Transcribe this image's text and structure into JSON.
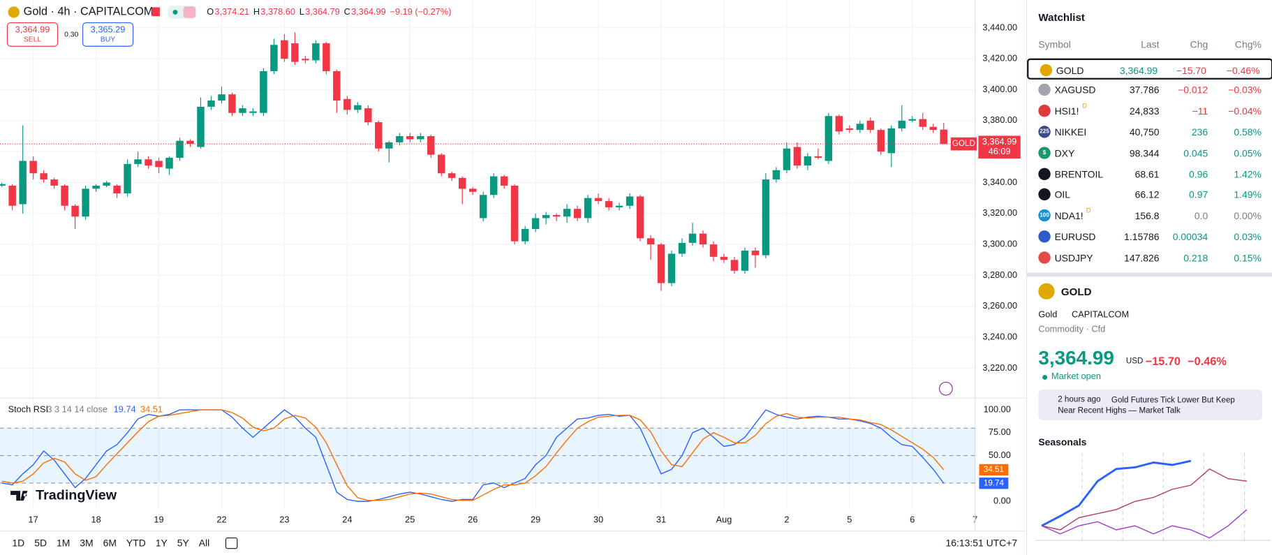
{
  "chart_data": [
    {
      "type": "candlestick",
      "title": "Gold · 4h · CAPITALCOM",
      "categories": [
        null,
        null,
        null,
        "17",
        null,
        null,
        null,
        null,
        null,
        "18",
        null,
        null,
        null,
        null,
        null,
        "19",
        null,
        null,
        null,
        null,
        null,
        "22",
        null,
        null,
        null,
        null,
        null,
        "23",
        null,
        null,
        null,
        null,
        null,
        "24",
        null,
        null,
        null,
        null,
        null,
        "25",
        null,
        null,
        null,
        null,
        null,
        "26",
        null,
        null,
        null,
        null,
        null,
        "29",
        null,
        null,
        null,
        null,
        null,
        "30",
        null,
        null,
        null,
        null,
        null,
        "31",
        null,
        null,
        null,
        null,
        null,
        "Aug",
        null,
        null,
        null,
        null,
        null,
        "2",
        null,
        null,
        null,
        null,
        null,
        "5",
        null,
        null,
        null,
        null,
        null,
        "6",
        null,
        null,
        null,
        null,
        null,
        "7"
      ],
      "open": [
        3338,
        3338,
        3326,
        3354,
        3346,
        3342,
        3338,
        3325,
        3318,
        3336,
        3338,
        3338,
        3333,
        3352,
        3355,
        3354,
        3349,
        3356,
        3367,
        3363,
        3389,
        3393,
        3397,
        3385,
        3385,
        3385,
        3412,
        3432,
        3430,
        3420,
        3419,
        3430,
        3412,
        3394,
        3387,
        3388,
        3379,
        3362,
        3366,
        3370,
        3368,
        3370,
        3358,
        3346,
        3343,
        3336,
        3317,
        3332,
        3344,
        3338,
        3302,
        3310,
        3317,
        3319,
        3318,
        3323,
        3317,
        3330,
        3328,
        3324,
        3325,
        3331,
        3304,
        3300,
        3275,
        3294,
        3301,
        3307,
        3300,
        3292,
        3290,
        3283,
        3296,
        3293,
        3342,
        3348,
        3363,
        3351,
        3357,
        3354,
        3383,
        3375,
        3374,
        3380,
        3374,
        3359,
        3375,
        3380,
        3381,
        3376,
        3374.21,
        null,
        null,
        null
      ],
      "high": [
        3340,
        3339,
        3377,
        3357,
        3348,
        3343,
        3339,
        3326,
        3338,
        3339,
        3341,
        3339,
        3355,
        3360,
        3357,
        3356,
        3357,
        3369,
        3368,
        3395,
        3396,
        3402,
        3398,
        3390,
        3388,
        3414,
        3433,
        3436,
        3437,
        3422,
        3432,
        3431,
        3413,
        3396,
        3392,
        3390,
        3380,
        3367,
        3372,
        3372,
        3372,
        3371,
        3359,
        3347,
        3344,
        3337,
        3334,
        3346,
        3345,
        3339,
        3312,
        3320,
        3321,
        3320,
        3326,
        3325,
        3332,
        3333,
        3330,
        3327,
        3333,
        3332,
        3306,
        3301,
        3296,
        3304,
        3314,
        3309,
        3302,
        3294,
        3292,
        3298,
        3298,
        3346,
        3350,
        3366,
        3366,
        3359,
        3362,
        3385,
        3384,
        3377,
        3380,
        3382,
        3375,
        3377,
        3390,
        3383,
        3385,
        3378,
        3378.6,
        null,
        null,
        null
      ],
      "low": [
        3337,
        3322,
        3320,
        3342,
        3340,
        3336,
        3322,
        3310,
        3316,
        3334,
        3337,
        3330,
        3331,
        3350,
        3349,
        3346,
        3345,
        3354,
        3363,
        3362,
        3387,
        3391,
        3383,
        3383,
        3383,
        3383,
        3410,
        3418,
        3416,
        3417,
        3417,
        3410,
        3385,
        3384,
        3385,
        3377,
        3360,
        3353,
        3364,
        3366,
        3366,
        3356,
        3344,
        3341,
        3326,
        3332,
        3315,
        3330,
        3336,
        3300,
        3300,
        3308,
        3313,
        3315,
        3314,
        3315,
        3314,
        3326,
        3322,
        3322,
        3323,
        3302,
        3290,
        3270,
        3273,
        3292,
        3299,
        3298,
        3289,
        3288,
        3281,
        3281,
        3285,
        3291,
        3340,
        3346,
        3349,
        3348,
        3355,
        3352,
        3371,
        3372,
        3372,
        3372,
        3358,
        3350,
        3373,
        3379,
        3374,
        3372,
        3364.79,
        null,
        null,
        null
      ],
      "close": [
        3339,
        3325,
        3354,
        3346,
        3342,
        3338,
        3325,
        3318,
        3336,
        3338,
        3340,
        3333,
        3352,
        3355,
        3351,
        3350,
        3356,
        3367,
        3365,
        3389,
        3393,
        3397,
        3385,
        3388,
        3386,
        3412,
        3429,
        3420,
        3418,
        3419,
        3430,
        3412,
        3393,
        3387,
        3390,
        3379,
        3362,
        3366,
        3370,
        3368,
        3370,
        3358,
        3346,
        3343,
        3336,
        3334,
        3332,
        3344,
        3338,
        3302,
        3310,
        3317,
        3319,
        3318,
        3323,
        3317,
        3330,
        3328,
        3324,
        3325,
        3331,
        3304,
        3300,
        3275,
        3294,
        3301,
        3307,
        3300,
        3292,
        3290,
        3283,
        3296,
        3293,
        3342,
        3348,
        3362,
        3351,
        3357,
        3356,
        3383,
        3373,
        3374,
        3378,
        3374,
        3360,
        3375,
        3380,
        3381,
        3376,
        3374,
        3364.99,
        null,
        null,
        null
      ],
      "up_color": "#089981",
      "down_color": "#f23645",
      "ylim": [
        3201,
        3458
      ],
      "yticks": [
        {
          "value": 3220,
          "label": "3,220.00"
        },
        {
          "value": 3240,
          "label": "3,240.00"
        },
        {
          "value": 3260,
          "label": "3,260.00"
        },
        {
          "value": 3280,
          "label": "3,280.00"
        },
        {
          "value": 3300,
          "label": "3,300.00"
        },
        {
          "value": 3320,
          "label": "3,320.00"
        },
        {
          "value": 3340,
          "label": "3,340.00"
        },
        {
          "value": 3360,
          "label": "3,360.00"
        },
        {
          "value": 3380,
          "label": "3,380.00"
        },
        {
          "value": 3400,
          "label": "3,400.00"
        },
        {
          "value": 3420,
          "label": "3,420.00"
        },
        {
          "value": 3440,
          "label": "3,440.00"
        }
      ],
      "grid": true,
      "symbol_tag": "GOLD",
      "last_price_label": "3,364.99",
      "countdown": "46:09"
    },
    {
      "type": "line",
      "title": "Stoch RSI",
      "params": "3 3 14 14 close",
      "series": [
        {
          "color": "#2962ff",
          "values": [
            20,
            18,
            30,
            40,
            55,
            45,
            30,
            15,
            25,
            40,
            55,
            62,
            75,
            90,
            95,
            93,
            95,
            100,
            100,
            100,
            100,
            100,
            92,
            80,
            70,
            80,
            90,
            100,
            92,
            80,
            70,
            40,
            10,
            2,
            0,
            0,
            2,
            5,
            8,
            10,
            8,
            5,
            2,
            0,
            2,
            2,
            18,
            20,
            15,
            20,
            25,
            40,
            50,
            70,
            80,
            90,
            91,
            94,
            95,
            93,
            94,
            80,
            55,
            30,
            35,
            50,
            75,
            80,
            70,
            60,
            62,
            70,
            85,
            100,
            95,
            92,
            90,
            92,
            93,
            92,
            90,
            90,
            88,
            85,
            80,
            70,
            62,
            60,
            48,
            35,
            19.74,
            null,
            null,
            null
          ]
        },
        {
          "color": "#ff6d00",
          "values": [
            22,
            20,
            22,
            30,
            42,
            47,
            43,
            30,
            23,
            27,
            40,
            52,
            64,
            76,
            87,
            93,
            94,
            96,
            98,
            100,
            100,
            100,
            97,
            91,
            81,
            77,
            80,
            90,
            94,
            91,
            81,
            64,
            40,
            17,
            4,
            1,
            1,
            2,
            5,
            8,
            9,
            8,
            5,
            2,
            1,
            1,
            7,
            13,
            18,
            18,
            20,
            28,
            38,
            53,
            67,
            80,
            87,
            92,
            93,
            94,
            94,
            89,
            76,
            55,
            40,
            38,
            53,
            68,
            75,
            70,
            64,
            64,
            72,
            85,
            93,
            96,
            92,
            91,
            92,
            92,
            92,
            90,
            89,
            86,
            84,
            78,
            71,
            64,
            57,
            48,
            34.51,
            null,
            null,
            null
          ]
        }
      ],
      "ylim": [
        -9,
        112.5
      ],
      "yticks": [
        {
          "value": 0,
          "label": "0.00"
        },
        {
          "value": 50,
          "label": "50.00"
        },
        {
          "value": 75,
          "label": "75.00"
        },
        {
          "value": 100,
          "label": "100.00"
        }
      ],
      "bands": [
        20,
        80
      ],
      "midline": 50,
      "band_color": "rgba(33,150,243,0.1)"
    },
    {
      "type": "line",
      "title": "Seasonals",
      "series": [
        {
          "color": "#2962ff",
          "values": [
            0,
            12,
            25,
            55,
            70,
            72,
            78,
            75,
            80,
            null,
            null,
            null
          ]
        },
        {
          "color": "#b03a6a",
          "values": [
            0,
            -5,
            10,
            15,
            20,
            30,
            35,
            45,
            50,
            70,
            58,
            55
          ]
        },
        {
          "color": "#a23bcf",
          "values": [
            0,
            -10,
            0,
            5,
            -5,
            0,
            -10,
            0,
            -5,
            -15,
            0,
            20
          ]
        }
      ],
      "ylim": [
        -20,
        90
      ]
    }
  ],
  "header": {
    "ohlc": [
      {
        "label": "O",
        "value": "3,374.21"
      },
      {
        "label": "H",
        "value": "3,378.60"
      },
      {
        "label": "L",
        "value": "3,364.79"
      },
      {
        "label": "C",
        "value": "3,364.99"
      }
    ],
    "change": "−9.19 (−0.27%)",
    "sell": {
      "price": "3,364.99",
      "label": "SELL"
    },
    "spread": "0.30",
    "buy": {
      "price": "3,365.29",
      "label": "BUY"
    }
  },
  "logo": "TradingView",
  "toolbar": {
    "ranges": [
      "1D",
      "5D",
      "1M",
      "3M",
      "6M",
      "YTD",
      "1Y",
      "5Y",
      "All"
    ],
    "clock": "16:13:51 UTC+7"
  },
  "watchlist": {
    "title": "Watchlist",
    "columns": [
      "Symbol",
      "Last",
      "Chg",
      "Chg%"
    ],
    "rows": [
      {
        "symbol": "GOLD",
        "last": "3,364.99",
        "chg": "−15.70",
        "chg_pct": "−0.46%",
        "icon_color": "#e0a800"
      },
      {
        "symbol": "XAGUSD",
        "last": "37.786",
        "chg": "−0.012",
        "chg_pct": "−0.03%",
        "icon_color": "#a0a4ad"
      },
      {
        "symbol": "HSI1!",
        "badge": "D",
        "last": "24,833",
        "chg": "−11",
        "chg_pct": "−0.04%",
        "icon_color": "#e03a3a"
      },
      {
        "symbol": "NIKKEI",
        "icon_text": "225",
        "last": "40,750",
        "chg": "236",
        "chg_pct": "0.58%",
        "icon_color": "#3a4a8c"
      },
      {
        "symbol": "DXY",
        "icon_text": "$",
        "last": "98.344",
        "chg": "0.045",
        "chg_pct": "0.05%",
        "icon_color": "#1a9a6a"
      },
      {
        "symbol": "BRENTOIL",
        "last": "68.61",
        "chg": "0.96",
        "chg_pct": "1.42%",
        "icon_color": "#131722"
      },
      {
        "symbol": "OIL",
        "last": "66.12",
        "chg": "0.97",
        "chg_pct": "1.49%",
        "icon_color": "#131722"
      },
      {
        "symbol": "NDA1!",
        "icon_text": "100",
        "badge": "D",
        "last": "156.8",
        "chg": "0.0",
        "chg_pct": "0.00%",
        "icon_color": "#1a8fd0"
      },
      {
        "symbol": "EURUSD",
        "last": "1.15786",
        "chg": "0.00034",
        "chg_pct": "0.03%",
        "icon_color": "#2f5bc4"
      },
      {
        "symbol": "USDJPY",
        "last": "147.826",
        "chg": "0.218",
        "chg_pct": "0.15%",
        "icon_color": "#e34a4a"
      }
    ]
  },
  "details": {
    "symbol": "GOLD",
    "name": "Gold",
    "exchange": "CAPITALCOM",
    "kind": "Commodity · Cfd",
    "price": "3,364.99",
    "currency": "USD",
    "change": "−15.70",
    "change_pct": "−0.46%",
    "status": "Market open",
    "news_time": "2 hours ago",
    "news_title": "Gold Futures Tick Lower But Keep Near Recent Highs — Market Talk"
  }
}
